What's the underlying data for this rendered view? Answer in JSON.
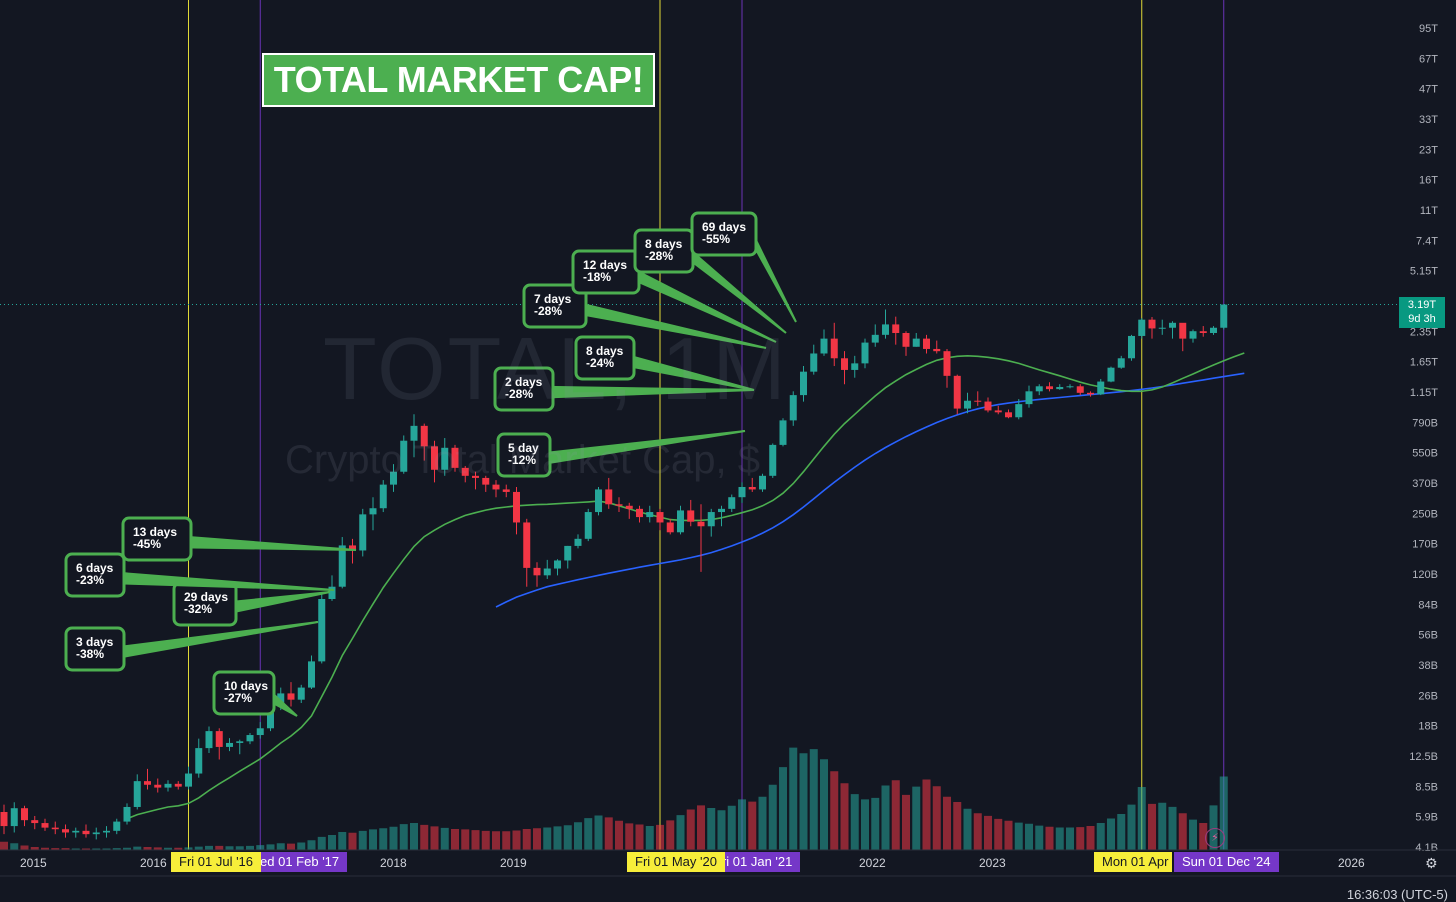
{
  "chart_data": {
    "type": "candlestick",
    "symbol": "TOTAL, 1M",
    "name": "Crypto Total Market Cap, $",
    "last_price": "3.19T",
    "countdown": "9d 3h",
    "y_axis": {
      "scale": "log",
      "ticks": [
        "95T",
        "67T",
        "47T",
        "33T",
        "23T",
        "16T",
        "11T",
        "7.4T",
        "5.15T",
        "3.55T",
        "2.35T",
        "1.65T",
        "1.15T",
        "790B",
        "550B",
        "370B",
        "250B",
        "170B",
        "120B",
        "84B",
        "56B",
        "38B",
        "26B",
        "18B",
        "12.5B",
        "8.5B",
        "5.9B",
        "4.1B"
      ],
      "range_T": [
        0.0041,
        95
      ]
    },
    "x_axis": {
      "ticks": [
        "2015",
        "2016",
        "2018",
        "2019",
        "2022",
        "2023",
        "2026"
      ]
    },
    "markers": [
      {
        "label": "Fri 01 Jul '16",
        "color": "#f7ee3a"
      },
      {
        "label": "Wed 01 Feb '17",
        "color": "#7537c8"
      },
      {
        "label": "Fri 01 May '20",
        "color": "#f7ee3a"
      },
      {
        "label": "Fri 01 Jan '21",
        "color": "#7537c8"
      },
      {
        "label": "Mon 01 Apr '24",
        "color": "#f7ee3a"
      },
      {
        "label": "Sun 01 Dec '24",
        "color": "#7537c8"
      }
    ],
    "candles_T": [
      [
        0.0063,
        0.0069,
        0.0048,
        0.0053
      ],
      [
        0.0053,
        0.0071,
        0.0049,
        0.0066
      ],
      [
        0.0066,
        0.0068,
        0.0053,
        0.0057
      ],
      [
        0.0057,
        0.006,
        0.0051,
        0.0055
      ],
      [
        0.0055,
        0.0058,
        0.005,
        0.0052
      ],
      [
        0.0052,
        0.0056,
        0.0048,
        0.0051
      ],
      [
        0.0051,
        0.0054,
        0.0046,
        0.0049
      ],
      [
        0.0049,
        0.0052,
        0.0046,
        0.005
      ],
      [
        0.005,
        0.0054,
        0.0046,
        0.0048
      ],
      [
        0.0048,
        0.0052,
        0.0045,
        0.0049
      ],
      [
        0.0049,
        0.0053,
        0.0046,
        0.005
      ],
      [
        0.005,
        0.0058,
        0.0048,
        0.0056
      ],
      [
        0.0056,
        0.007,
        0.0054,
        0.0067
      ],
      [
        0.0067,
        0.01,
        0.0065,
        0.0092
      ],
      [
        0.0092,
        0.0107,
        0.0083,
        0.0088
      ],
      [
        0.0088,
        0.0095,
        0.008,
        0.0085
      ],
      [
        0.0085,
        0.0093,
        0.0081,
        0.0089
      ],
      [
        0.0089,
        0.0092,
        0.0083,
        0.0086
      ],
      [
        0.0086,
        0.011,
        0.0083,
        0.0101
      ],
      [
        0.0101,
        0.0155,
        0.0096,
        0.0138
      ],
      [
        0.0138,
        0.018,
        0.013,
        0.017
      ],
      [
        0.017,
        0.0176,
        0.012,
        0.014
      ],
      [
        0.014,
        0.0156,
        0.0133,
        0.0147
      ],
      [
        0.0147,
        0.0153,
        0.0128,
        0.015
      ],
      [
        0.015,
        0.0166,
        0.0145,
        0.0162
      ],
      [
        0.0162,
        0.019,
        0.0155,
        0.0176
      ],
      [
        0.0176,
        0.024,
        0.017,
        0.023
      ],
      [
        0.023,
        0.029,
        0.022,
        0.027
      ],
      [
        0.027,
        0.031,
        0.023,
        0.025
      ],
      [
        0.025,
        0.03,
        0.024,
        0.029
      ],
      [
        0.029,
        0.043,
        0.0285,
        0.04
      ],
      [
        0.04,
        0.092,
        0.039,
        0.086
      ],
      [
        0.086,
        0.115,
        0.084,
        0.1
      ],
      [
        0.1,
        0.184,
        0.098,
        0.166
      ],
      [
        0.166,
        0.18,
        0.133,
        0.156
      ],
      [
        0.156,
        0.26,
        0.145,
        0.243
      ],
      [
        0.243,
        0.3,
        0.2,
        0.262
      ],
      [
        0.262,
        0.37,
        0.25,
        0.35
      ],
      [
        0.35,
        0.45,
        0.32,
        0.41
      ],
      [
        0.41,
        0.64,
        0.4,
        0.6
      ],
      [
        0.6,
        0.83,
        0.49,
        0.72
      ],
      [
        0.72,
        0.74,
        0.47,
        0.56
      ],
      [
        0.56,
        0.6,
        0.36,
        0.42
      ],
      [
        0.42,
        0.62,
        0.39,
        0.55
      ],
      [
        0.55,
        0.57,
        0.41,
        0.43
      ],
      [
        0.43,
        0.44,
        0.36,
        0.39
      ],
      [
        0.39,
        0.41,
        0.33,
        0.38
      ],
      [
        0.38,
        0.39,
        0.32,
        0.35
      ],
      [
        0.35,
        0.37,
        0.3,
        0.33
      ],
      [
        0.33,
        0.35,
        0.3,
        0.32
      ],
      [
        0.32,
        0.34,
        0.19,
        0.22
      ],
      [
        0.22,
        0.23,
        0.1,
        0.126
      ],
      [
        0.126,
        0.135,
        0.1,
        0.115
      ],
      [
        0.115,
        0.139,
        0.11,
        0.125
      ],
      [
        0.125,
        0.14,
        0.115,
        0.138
      ],
      [
        0.138,
        0.165,
        0.125,
        0.165
      ],
      [
        0.165,
        0.19,
        0.16,
        0.18
      ],
      [
        0.18,
        0.26,
        0.175,
        0.25
      ],
      [
        0.25,
        0.34,
        0.24,
        0.33
      ],
      [
        0.33,
        0.38,
        0.26,
        0.275
      ],
      [
        0.275,
        0.3,
        0.25,
        0.27
      ],
      [
        0.27,
        0.28,
        0.23,
        0.26
      ],
      [
        0.26,
        0.27,
        0.22,
        0.235
      ],
      [
        0.235,
        0.27,
        0.22,
        0.25
      ],
      [
        0.25,
        0.26,
        0.2,
        0.22
      ],
      [
        0.22,
        0.23,
        0.19,
        0.195
      ],
      [
        0.195,
        0.27,
        0.19,
        0.255
      ],
      [
        0.255,
        0.29,
        0.21,
        0.222
      ],
      [
        0.222,
        0.275,
        0.12,
        0.21
      ],
      [
        0.21,
        0.26,
        0.185,
        0.25
      ],
      [
        0.25,
        0.27,
        0.21,
        0.26
      ],
      [
        0.26,
        0.31,
        0.25,
        0.3
      ],
      [
        0.3,
        0.36,
        0.28,
        0.34
      ],
      [
        0.34,
        0.38,
        0.32,
        0.33
      ],
      [
        0.33,
        0.4,
        0.32,
        0.39
      ],
      [
        0.39,
        0.58,
        0.38,
        0.57
      ],
      [
        0.57,
        0.79,
        0.56,
        0.77
      ],
      [
        0.77,
        1.1,
        0.72,
        1.05
      ],
      [
        1.05,
        1.5,
        0.97,
        1.4
      ],
      [
        1.4,
        1.95,
        1.35,
        1.75
      ],
      [
        1.75,
        2.35,
        1.7,
        2.1
      ],
      [
        2.1,
        2.55,
        1.5,
        1.65
      ],
      [
        1.65,
        1.8,
        1.2,
        1.43
      ],
      [
        1.43,
        1.7,
        1.3,
        1.55
      ],
      [
        1.55,
        2.1,
        1.46,
        2.0
      ],
      [
        2.0,
        2.5,
        1.9,
        2.2
      ],
      [
        2.2,
        3.0,
        2.1,
        2.5
      ],
      [
        2.5,
        2.75,
        1.95,
        2.25
      ],
      [
        2.25,
        2.3,
        1.7,
        1.9
      ],
      [
        1.9,
        2.25,
        1.9,
        2.1
      ],
      [
        2.1,
        2.2,
        1.75,
        1.85
      ],
      [
        1.85,
        2.05,
        1.75,
        1.8
      ],
      [
        1.8,
        1.85,
        1.15,
        1.33
      ],
      [
        1.33,
        1.35,
        0.83,
        0.89
      ],
      [
        0.89,
        1.08,
        0.84,
        0.98
      ],
      [
        0.98,
        1.1,
        0.92,
        0.97
      ],
      [
        0.97,
        1.02,
        0.85,
        0.87
      ],
      [
        0.87,
        0.92,
        0.83,
        0.85
      ],
      [
        0.85,
        0.88,
        0.79,
        0.8
      ],
      [
        0.8,
        1.0,
        0.78,
        0.94
      ],
      [
        0.94,
        1.18,
        0.9,
        1.1
      ],
      [
        1.1,
        1.2,
        1.05,
        1.17
      ],
      [
        1.17,
        1.23,
        1.1,
        1.13
      ],
      [
        1.13,
        1.2,
        1.12,
        1.16
      ],
      [
        1.16,
        1.2,
        1.14,
        1.17
      ],
      [
        1.17,
        1.2,
        1.05,
        1.08
      ],
      [
        1.08,
        1.1,
        1.03,
        1.06
      ],
      [
        1.06,
        1.28,
        1.05,
        1.24
      ],
      [
        1.24,
        1.49,
        1.23,
        1.47
      ],
      [
        1.47,
        1.7,
        1.45,
        1.65
      ],
      [
        1.65,
        2.2,
        1.6,
        2.17
      ],
      [
        2.17,
        2.7,
        2.1,
        2.65
      ],
      [
        2.65,
        2.74,
        2.1,
        2.38
      ],
      [
        2.38,
        2.65,
        2.2,
        2.4
      ],
      [
        2.4,
        2.6,
        2.1,
        2.55
      ],
      [
        2.55,
        2.5,
        1.8,
        2.1
      ],
      [
        2.1,
        2.35,
        2.0,
        2.3
      ],
      [
        2.3,
        2.45,
        2.15,
        2.25
      ],
      [
        2.25,
        2.45,
        2.2,
        2.4
      ],
      [
        2.4,
        3.2,
        2.35,
        3.19
      ]
    ],
    "ma_short_T": [
      null,
      null,
      null,
      null,
      null,
      null,
      null,
      null,
      null,
      null,
      null,
      null,
      0.0058,
      0.0061,
      0.0063,
      0.0065,
      0.0067,
      0.0068,
      0.007,
      0.0075,
      0.0082,
      0.0089,
      0.0096,
      0.0104,
      0.0112,
      0.0121,
      0.0133,
      0.0147,
      0.016,
      0.0178,
      0.0205,
      0.026,
      0.033,
      0.043,
      0.053,
      0.066,
      0.081,
      0.099,
      0.118,
      0.14,
      0.164,
      0.185,
      0.2,
      0.215,
      0.228,
      0.24,
      0.248,
      0.256,
      0.262,
      0.266,
      0.27,
      0.272,
      0.274,
      0.275,
      0.277,
      0.279,
      0.281,
      0.283,
      0.286,
      0.28,
      0.27,
      0.26,
      0.25,
      0.242,
      0.235,
      0.228,
      0.226,
      0.225,
      0.226,
      0.228,
      0.233,
      0.24,
      0.248,
      0.257,
      0.27,
      0.288,
      0.315,
      0.355,
      0.41,
      0.48,
      0.56,
      0.65,
      0.74,
      0.83,
      0.93,
      1.04,
      1.15,
      1.25,
      1.35,
      1.44,
      1.53,
      1.61,
      1.66,
      1.69,
      1.7,
      1.69,
      1.67,
      1.64,
      1.6,
      1.55,
      1.49,
      1.43,
      1.38,
      1.33,
      1.28,
      1.23,
      1.19,
      1.16,
      1.13,
      1.11,
      1.1,
      1.1,
      1.12,
      1.16,
      1.22,
      1.29,
      1.36,
      1.44,
      1.52,
      1.6,
      1.68,
      1.76
    ],
    "ma_long_T": [
      null,
      null,
      null,
      null,
      null,
      null,
      null,
      null,
      null,
      null,
      null,
      null,
      null,
      null,
      null,
      null,
      null,
      null,
      null,
      null,
      null,
      null,
      null,
      null,
      null,
      null,
      null,
      null,
      null,
      null,
      null,
      null,
      null,
      null,
      null,
      null,
      null,
      null,
      null,
      null,
      null,
      null,
      null,
      null,
      null,
      null,
      null,
      null,
      0.078,
      0.083,
      0.088,
      0.092,
      0.096,
      0.1,
      0.103,
      0.106,
      0.109,
      0.112,
      0.115,
      0.118,
      0.121,
      0.124,
      0.127,
      0.13,
      0.133,
      0.136,
      0.139,
      0.143,
      0.147,
      0.152,
      0.158,
      0.165,
      0.173,
      0.182,
      0.193,
      0.206,
      0.222,
      0.242,
      0.266,
      0.294,
      0.326,
      0.36,
      0.396,
      0.434,
      0.473,
      0.513,
      0.552,
      0.591,
      0.631,
      0.671,
      0.71,
      0.75,
      0.788,
      0.824,
      0.858,
      0.888,
      0.913,
      0.934,
      0.952,
      0.968,
      0.983,
      0.996,
      1.008,
      1.02,
      1.032,
      1.044,
      1.056,
      1.068,
      1.081,
      1.095,
      1.11,
      1.127,
      1.146,
      1.167,
      1.19,
      1.215,
      1.24,
      1.266,
      1.292,
      1.318,
      1.345,
      1.372
    ],
    "volume_B": [
      2.2,
      1.8,
      1.2,
      0.8,
      0.6,
      0.5,
      0.5,
      0.4,
      0.4,
      0.4,
      0.4,
      0.5,
      0.6,
      0.9,
      0.8,
      0.7,
      0.6,
      0.6,
      0.7,
      0.9,
      1.1,
      1.1,
      1.0,
      1.0,
      1.1,
      1.3,
      1.5,
      1.8,
      1.7,
      2.0,
      2.6,
      3.5,
      4.0,
      4.8,
      4.6,
      5.1,
      5.5,
      5.8,
      6.2,
      6.9,
      7.2,
      6.7,
      6.3,
      5.9,
      5.6,
      5.5,
      5.3,
      5.1,
      5.0,
      5.0,
      5.2,
      5.6,
      5.8,
      6.0,
      6.3,
      6.6,
      7.4,
      8.5,
      9.2,
      8.7,
      7.8,
      7.1,
      6.8,
      6.4,
      6.7,
      7.9,
      9.3,
      10.8,
      11.9,
      11.2,
      10.6,
      11.8,
      13.5,
      12.9,
      14.2,
      17.4,
      22.1,
      27.3,
      25.8,
      26.9,
      24.2,
      21.0,
      17.8,
      14.9,
      13.5,
      13.9,
      17.2,
      18.6,
      14.7,
      16.9,
      18.8,
      17.0,
      14.2,
      12.8,
      11.0,
      9.8,
      9.1,
      8.3,
      7.8,
      7.3,
      7.0,
      6.5,
      6.2,
      6.0,
      6.0,
      6.1,
      6.4,
      7.2,
      8.4,
      9.6,
      12.1,
      16.8,
      12.3,
      12.6,
      11.5,
      9.8,
      8.1,
      7.2,
      11.9,
      19.6
    ]
  },
  "annotations": [
    {
      "days": "10 days",
      "pct": "-27%"
    },
    {
      "days": "3 days",
      "pct": "-38%"
    },
    {
      "days": "29 days",
      "pct": "-32%"
    },
    {
      "days": "6 days",
      "pct": "-23%"
    },
    {
      "days": "13 days",
      "pct": "-45%"
    },
    {
      "days": "5 day",
      "pct": "-12%"
    },
    {
      "days": "2 days",
      "pct": "-28%"
    },
    {
      "days": "8 days",
      "pct": "-24%"
    },
    {
      "days": "7 days",
      "pct": "-28%"
    },
    {
      "days": "12 days",
      "pct": "-18%"
    },
    {
      "days": "8 days",
      "pct": "-28%"
    },
    {
      "days": "69 days",
      "pct": "-55%"
    }
  ],
  "overlay": {
    "title": "TOTAL MARKET CAP!",
    "watermark_symbol": "TOTAL, 1M",
    "watermark_name": "Crypto Total Market Cap, $"
  },
  "status": {
    "clock": "16:36:03 (UTC-5)"
  },
  "colors": {
    "up": "#26a69a",
    "down": "#f23645",
    "ma_short": "#4caf50",
    "ma_long": "#2962ff",
    "annotation": "#4caf50"
  }
}
